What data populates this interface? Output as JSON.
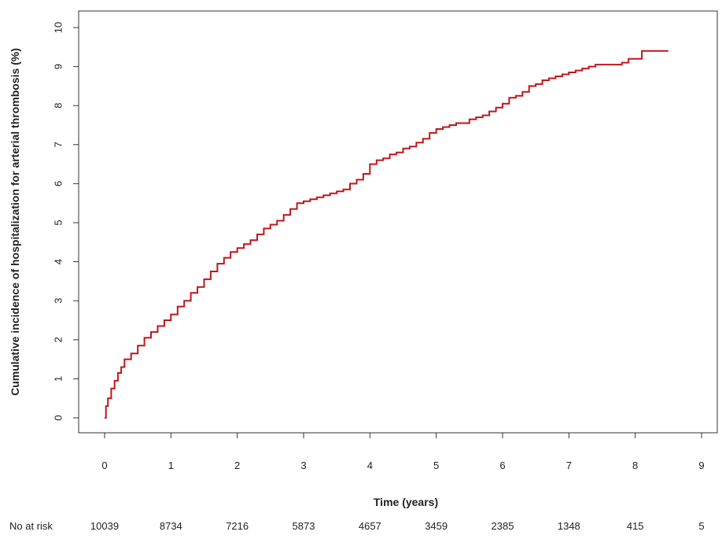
{
  "chart_data": {
    "type": "line",
    "title": "",
    "xlabel": "Time (years)",
    "ylabel": "Cumulative incidence of hospitalization for arterial thrombosis (%)",
    "xlim": [
      0,
      9
    ],
    "ylim": [
      0,
      10
    ],
    "x_ticks": [
      0,
      1,
      2,
      3,
      4,
      5,
      6,
      7,
      8,
      9
    ],
    "y_ticks": [
      0,
      1,
      2,
      3,
      4,
      5,
      6,
      7,
      8,
      9,
      10
    ],
    "grid": false,
    "line_color": "#c0161c",
    "series": [
      {
        "style": "step",
        "x": [
          0,
          0.02,
          0.05,
          0.1,
          0.15,
          0.2,
          0.25,
          0.3,
          0.4,
          0.5,
          0.6,
          0.7,
          0.8,
          0.9,
          1.0,
          1.1,
          1.2,
          1.3,
          1.4,
          1.5,
          1.6,
          1.7,
          1.8,
          1.9,
          2.0,
          2.1,
          2.2,
          2.3,
          2.4,
          2.5,
          2.6,
          2.7,
          2.8,
          2.9,
          3.0,
          3.1,
          3.2,
          3.3,
          3.4,
          3.5,
          3.6,
          3.7,
          3.8,
          3.9,
          4.0,
          4.1,
          4.2,
          4.3,
          4.4,
          4.5,
          4.6,
          4.7,
          4.8,
          4.9,
          5.0,
          5.1,
          5.2,
          5.3,
          5.4,
          5.5,
          5.6,
          5.7,
          5.8,
          5.9,
          6.0,
          6.1,
          6.2,
          6.3,
          6.4,
          6.5,
          6.6,
          6.7,
          6.8,
          6.9,
          7.0,
          7.1,
          7.2,
          7.3,
          7.4,
          7.5,
          7.6,
          7.7,
          7.8,
          7.9,
          8.0,
          8.1,
          8.2,
          8.3,
          8.4,
          8.5
        ],
        "y": [
          0.0,
          0.3,
          0.5,
          0.75,
          0.95,
          1.15,
          1.3,
          1.5,
          1.65,
          1.85,
          2.05,
          2.2,
          2.35,
          2.5,
          2.65,
          2.85,
          3.0,
          3.2,
          3.35,
          3.55,
          3.75,
          3.95,
          4.1,
          4.25,
          4.35,
          4.45,
          4.55,
          4.7,
          4.85,
          4.95,
          5.05,
          5.2,
          5.35,
          5.5,
          5.55,
          5.6,
          5.65,
          5.7,
          5.75,
          5.8,
          5.85,
          6.0,
          6.1,
          6.25,
          6.5,
          6.6,
          6.65,
          6.75,
          6.8,
          6.9,
          6.95,
          7.05,
          7.15,
          7.3,
          7.4,
          7.45,
          7.5,
          7.55,
          7.55,
          7.65,
          7.7,
          7.75,
          7.85,
          7.95,
          8.05,
          8.2,
          8.25,
          8.35,
          8.5,
          8.55,
          8.65,
          8.7,
          8.75,
          8.8,
          8.85,
          8.9,
          8.95,
          9.0,
          9.05,
          9.05,
          9.05,
          9.05,
          9.1,
          9.2,
          9.2,
          9.4,
          9.4,
          9.4,
          9.4,
          9.4
        ]
      }
    ],
    "risk_table": {
      "label": "No at risk",
      "times": [
        0,
        1,
        2,
        3,
        4,
        5,
        6,
        7,
        8,
        9
      ],
      "values": [
        "10039",
        "8734",
        "7216",
        "5873",
        "4657",
        "3459",
        "2385",
        "1348",
        "415",
        "5"
      ]
    }
  }
}
